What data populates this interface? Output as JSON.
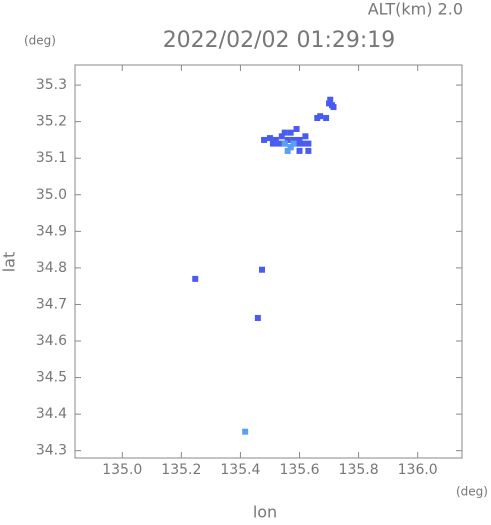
{
  "chart_data": {
    "type": "scatter",
    "annotation": "ALT(km) 2.0",
    "title": "2022/02/02 01:29:19",
    "x_unit": "(deg)",
    "y_unit": "(deg)",
    "x_label": "lon",
    "y_label": "lat",
    "xlim": [
      134.84,
      136.15
    ],
    "ylim": [
      34.28,
      35.355
    ],
    "xticks": [
      {
        "value": 135,
        "label": "135.0"
      },
      135.2,
      135.4,
      135.6,
      135.8,
      {
        "value": 136,
        "label": "136.0"
      }
    ],
    "yticks": [
      34.3,
      34.4,
      34.5,
      34.6,
      34.7,
      34.8,
      34.9,
      {
        "value": 35,
        "label": "35.0"
      },
      35.1,
      35.2,
      35.3
    ],
    "series": [
      {
        "color": "#4a5cf0",
        "x": [
          135.48,
          135.5,
          135.52,
          135.54,
          135.56,
          135.58,
          135.6,
          135.62,
          135.51,
          135.53,
          135.55,
          135.57,
          135.59,
          135.61,
          135.63,
          135.55,
          135.57,
          135.59,
          135.6,
          135.63,
          135.66,
          135.67,
          135.69,
          135.7,
          135.71,
          135.715,
          135.704,
          135.247,
          135.473,
          135.459
        ],
        "y": [
          35.15,
          35.155,
          35.15,
          35.16,
          35.15,
          35.15,
          35.15,
          35.16,
          35.14,
          35.14,
          35.14,
          35.13,
          35.14,
          35.14,
          35.12,
          35.17,
          35.17,
          35.18,
          35.12,
          35.14,
          35.21,
          35.215,
          35.21,
          35.25,
          35.245,
          35.24,
          35.26,
          34.77,
          34.795,
          34.663
        ]
      },
      {
        "color": "#5aa0f0",
        "x": [
          135.55,
          135.57,
          135.56,
          135.58,
          135.416
        ],
        "y": [
          35.14,
          35.13,
          35.12,
          35.14,
          34.352
        ]
      }
    ]
  }
}
